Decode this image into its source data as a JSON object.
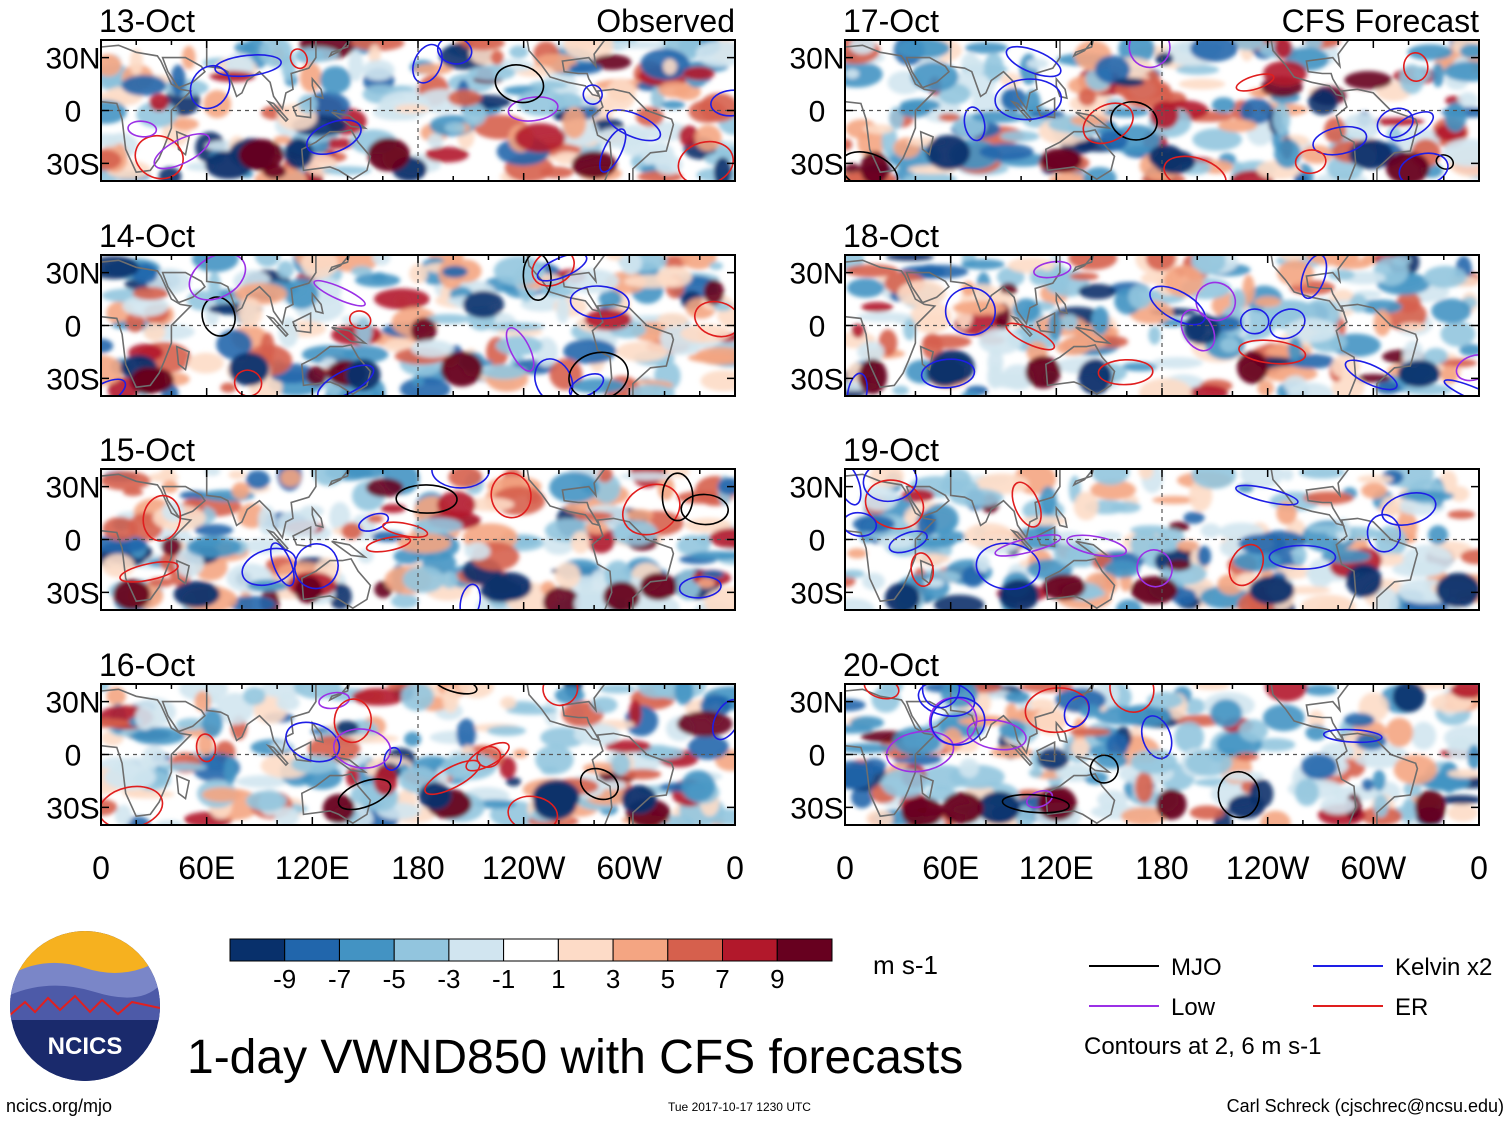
{
  "chart_data": {
    "type": "heatmap",
    "title": "1-day VWND850 with CFS forecasts",
    "columns": [
      {
        "header": "Observed",
        "panels": [
          "13-Oct",
          "14-Oct",
          "15-Oct",
          "16-Oct"
        ]
      },
      {
        "header": "CFS Forecast",
        "panels": [
          "17-Oct",
          "18-Oct",
          "19-Oct",
          "20-Oct"
        ]
      }
    ],
    "x_ticks": [
      "0",
      "60E",
      "120E",
      "180",
      "120W",
      "60W",
      "0"
    ],
    "y_ticks": [
      "30N",
      "0",
      "30S"
    ],
    "xlim_deg_east": [
      0,
      360
    ],
    "ylim_deg_north": [
      -40,
      40
    ],
    "colorbar": {
      "units": "m s-1",
      "tick_labels": [
        "-9",
        "-7",
        "-5",
        "-3",
        "-1",
        "1",
        "3",
        "5",
        "7",
        "9"
      ],
      "colors": [
        "#08306b",
        "#2166ac",
        "#4393c3",
        "#92c5de",
        "#d1e5f0",
        "#ffffff",
        "#fddbc7",
        "#f4a582",
        "#d6604d",
        "#b2182b",
        "#67001f"
      ]
    },
    "legend": [
      {
        "label": "MJO",
        "color": "#000000"
      },
      {
        "label": "Kelvin x2",
        "color": "#1e1ee6"
      },
      {
        "label": "Low",
        "color": "#9b30e6"
      },
      {
        "label": "ER",
        "color": "#e01e1e"
      }
    ],
    "contour_note": "Contours at 2, 6 m s-1"
  },
  "footer": {
    "logo_text": "NCICS",
    "site": "ncics.org/mjo",
    "timestamp": "Tue 2017-10-17 1230 UTC",
    "author": "Carl Schreck (cjschrec@ncsu.edu)"
  }
}
